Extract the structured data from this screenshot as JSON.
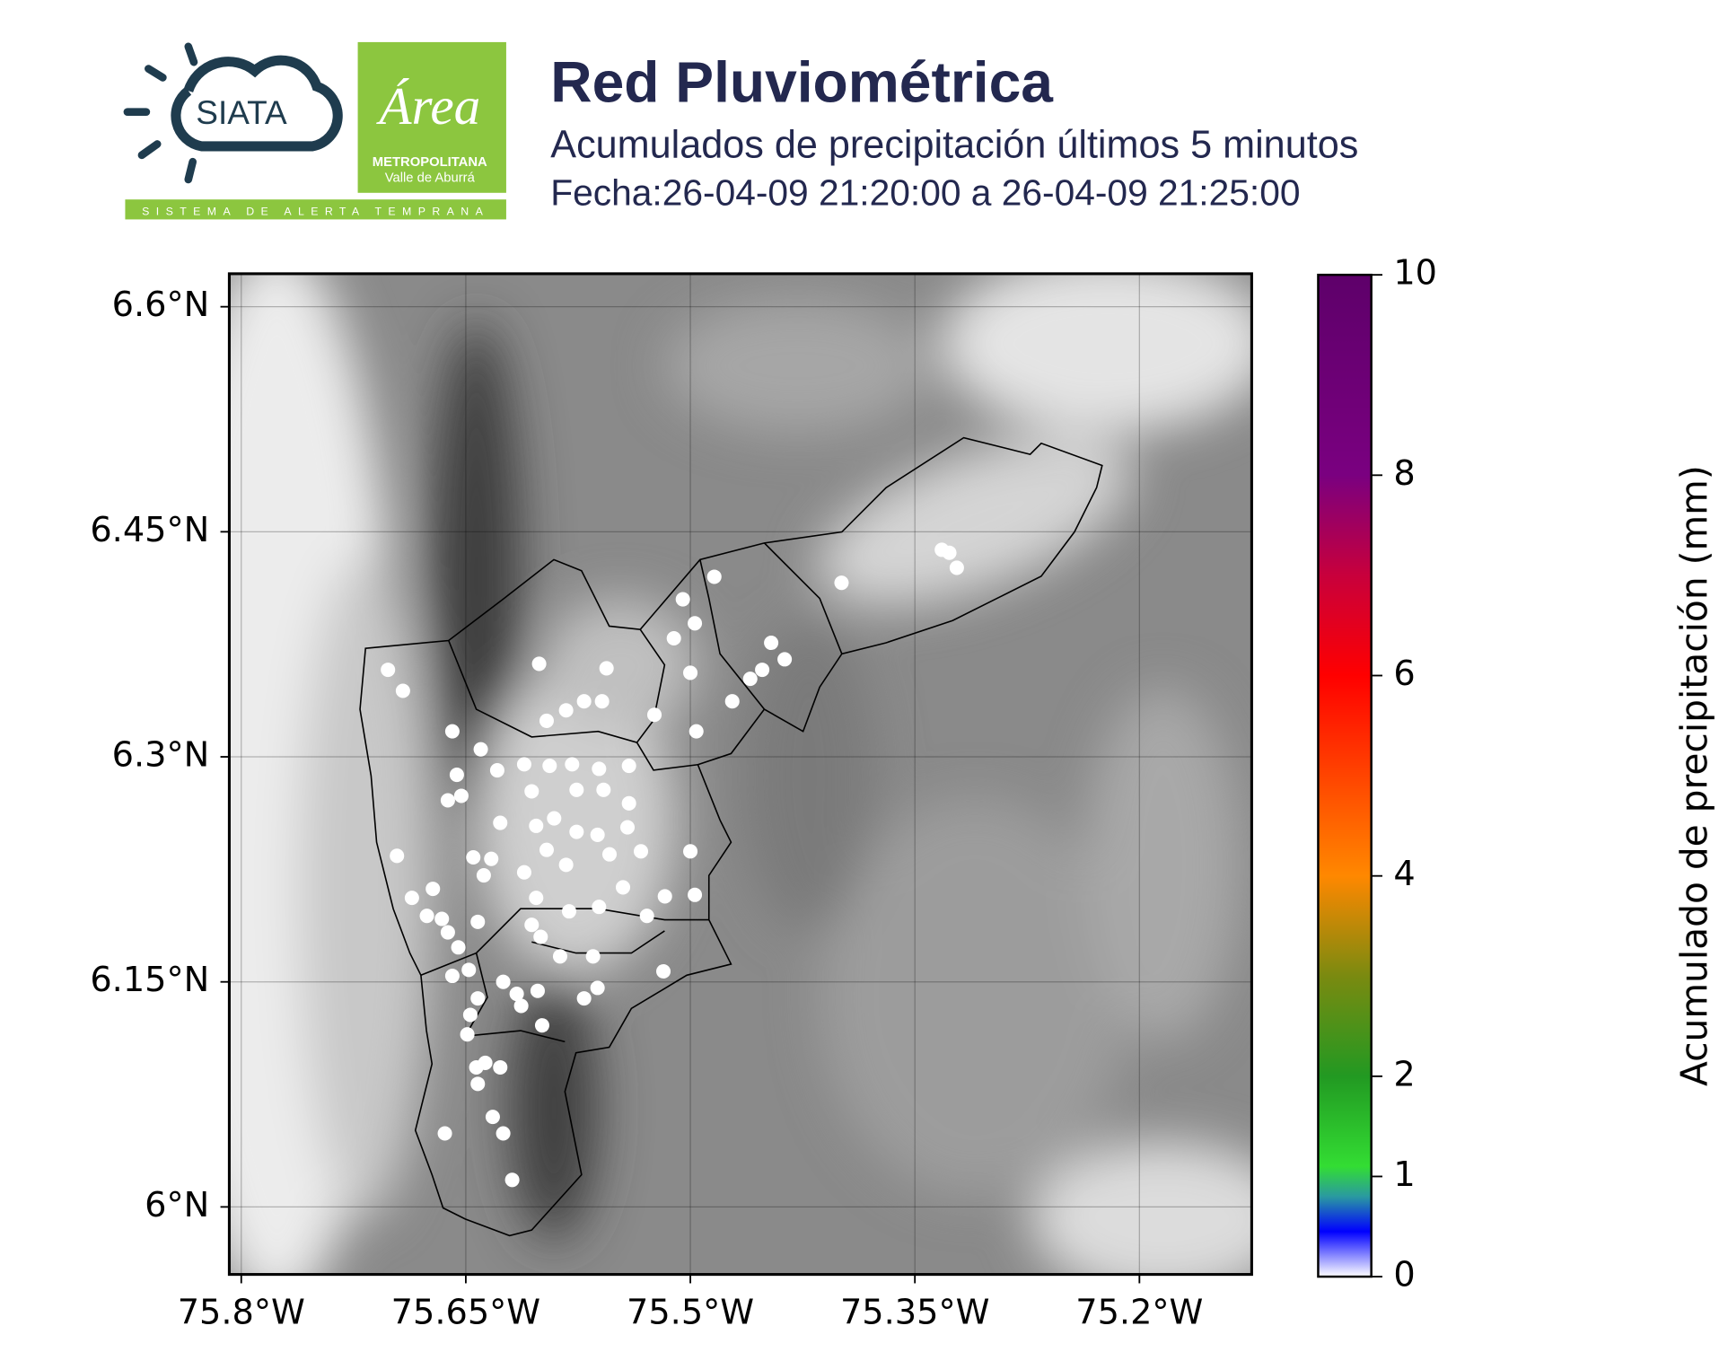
{
  "header": {
    "title": "Red Pluviométrica",
    "subtitle": "Acumulados de precipitación últimos 5 minutos",
    "date": "Fecha:26-04-09 21:20:00 a 26-04-09 21:25:00"
  },
  "logos": {
    "siata": "SIATA",
    "area": "Área",
    "area_line1": "METROPOLITANA",
    "area_line2": "Valle de Aburrá",
    "strip": "SISTEMA DE ALERTA TEMPRANA"
  },
  "map": {
    "xlim": [
      -75.808,
      -75.125
    ],
    "ylim": [
      5.955,
      6.622
    ],
    "grid": true,
    "xticks": [
      {
        "value": -75.8,
        "label": "75.8°W"
      },
      {
        "value": -75.65,
        "label": "75.65°W"
      },
      {
        "value": -75.5,
        "label": "75.5°W"
      },
      {
        "value": -75.35,
        "label": "75.35°W"
      },
      {
        "value": -75.2,
        "label": "75.2°W"
      }
    ],
    "yticks": [
      {
        "value": 6.6,
        "label": "6.6°N"
      },
      {
        "value": 6.45,
        "label": "6.45°N"
      },
      {
        "value": 6.3,
        "label": "6.3°N"
      },
      {
        "value": 6.15,
        "label": "6.15°N"
      },
      {
        "value": 6.0,
        "label": "6°N"
      }
    ],
    "stations": {
      "color": "#ffffff",
      "lon": [
        -75.702,
        -75.692,
        -75.601,
        -75.556,
        -75.505,
        -75.484,
        -75.497,
        -75.511,
        -75.5,
        -75.472,
        -75.446,
        -75.437,
        -75.452,
        -75.46,
        -75.399,
        -75.332,
        -75.327,
        -75.322,
        -75.524,
        -75.496,
        -75.659,
        -75.64,
        -75.596,
        -75.583,
        -75.571,
        -75.559,
        -75.611,
        -75.629,
        -75.656,
        -75.662,
        -75.653,
        -75.594,
        -75.579,
        -75.561,
        -75.541,
        -75.606,
        -75.576,
        -75.558,
        -75.541,
        -75.627,
        -75.603,
        -75.591,
        -75.576,
        -75.562,
        -75.542,
        -75.696,
        -75.645,
        -75.633,
        -75.596,
        -75.554,
        -75.533,
        -75.5,
        -75.638,
        -75.611,
        -75.583,
        -75.545,
        -75.517,
        -75.497,
        -75.686,
        -75.672,
        -75.676,
        -75.666,
        -75.642,
        -75.603,
        -75.581,
        -75.561,
        -75.529,
        -75.662,
        -75.606,
        -75.6,
        -75.655,
        -75.587,
        -75.565,
        -75.648,
        -75.625,
        -75.659,
        -75.518,
        -75.562,
        -75.571,
        -75.642,
        -75.616,
        -75.602,
        -75.613,
        -75.647,
        -75.599,
        -75.649,
        -75.627,
        -75.643,
        -75.637,
        -75.642,
        -75.664,
        -75.632,
        -75.625,
        -75.619
      ],
      "lat": [
        6.358,
        6.344,
        6.362,
        6.359,
        6.405,
        6.42,
        6.389,
        6.379,
        6.356,
        6.337,
        6.376,
        6.365,
        6.358,
        6.352,
        6.416,
        6.438,
        6.436,
        6.426,
        6.328,
        6.317,
        6.317,
        6.305,
        6.324,
        6.331,
        6.337,
        6.337,
        6.295,
        6.291,
        6.288,
        6.271,
        6.274,
        6.294,
        6.295,
        6.292,
        6.294,
        6.277,
        6.278,
        6.278,
        6.269,
        6.256,
        6.254,
        6.259,
        6.25,
        6.248,
        6.253,
        6.234,
        6.233,
        6.232,
        6.238,
        6.235,
        6.237,
        6.237,
        6.221,
        6.223,
        6.228,
        6.213,
        6.207,
        6.208,
        6.206,
        6.212,
        6.194,
        6.192,
        6.19,
        6.206,
        6.197,
        6.2,
        6.194,
        6.183,
        6.188,
        6.18,
        6.173,
        6.167,
        6.167,
        6.158,
        6.15,
        6.154,
        6.157,
        6.146,
        6.139,
        6.139,
        6.142,
        6.144,
        6.134,
        6.128,
        6.121,
        6.115,
        6.093,
        6.093,
        6.096,
        6.082,
        6.049,
        6.06,
        6.049,
        6.018
      ]
    }
  },
  "colorbar": {
    "label": "Acumulado de precipitación (mm)",
    "lim": [
      0,
      10
    ],
    "ticks": [
      0,
      1,
      2,
      4,
      6,
      8,
      10
    ],
    "stops": [
      {
        "value": 0,
        "color": "#ffffff"
      },
      {
        "value": 0.45,
        "color": "#0000ff"
      },
      {
        "value": 0.8,
        "color": "#2a9aa0"
      },
      {
        "value": 1.1,
        "color": "#33dd33"
      },
      {
        "value": 2,
        "color": "#229922"
      },
      {
        "value": 3,
        "color": "#7a8a10"
      },
      {
        "value": 4,
        "color": "#ff8800"
      },
      {
        "value": 5,
        "color": "#ff4400"
      },
      {
        "value": 6,
        "color": "#ff0000"
      },
      {
        "value": 7,
        "color": "#c8003c"
      },
      {
        "value": 8,
        "color": "#7a0080"
      },
      {
        "value": 10,
        "color": "#5e006a"
      }
    ]
  }
}
